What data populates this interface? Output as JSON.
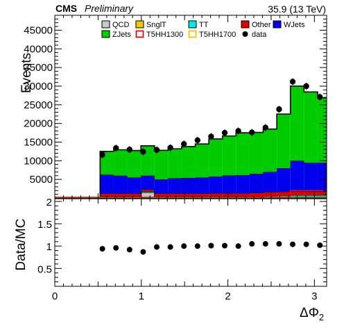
{
  "header": {
    "experiment": "CMS",
    "status": "Preliminary",
    "lumi": "35.9 (13 TeV)"
  },
  "chart_data": [
    {
      "type": "stacked-histogram",
      "xlabel": "ΔΦ",
      "xlabel_sub": "2",
      "ylabel": "Events",
      "xlim": [
        0,
        3.1416
      ],
      "ylim": [
        0,
        49000
      ],
      "yticks": [
        5000,
        10000,
        15000,
        20000,
        25000,
        30000,
        35000,
        40000,
        45000
      ],
      "ytick_labels": [
        "5000",
        "10000",
        "15000",
        "20000",
        "25000",
        "30000",
        "35000",
        "40000",
        "45000"
      ],
      "bin_edges": [
        0.5236,
        0.6807,
        0.8378,
        0.9948,
        1.1519,
        1.309,
        1.4661,
        1.6232,
        1.7802,
        1.9373,
        2.0944,
        2.2515,
        2.4086,
        2.5656,
        2.7227,
        2.8798,
        3.0369,
        3.1416
      ],
      "legend": {
        "placement": "top-right",
        "entries": [
          {
            "label": "QCD",
            "style": "fill",
            "color": "#c8c8c8"
          },
          {
            "label": "SnglT",
            "style": "fill",
            "color": "#f7c600"
          },
          {
            "label": "TT",
            "style": "fill",
            "color": "#00e8e8"
          },
          {
            "label": "Other",
            "style": "fill",
            "color": "#e00000"
          },
          {
            "label": "WJets",
            "style": "fill",
            "color": "#0000ee"
          },
          {
            "label": "ZJets",
            "style": "fill",
            "color": "#00cc00"
          },
          {
            "label": "T5HH1300",
            "style": "line",
            "color": "#ff0000"
          },
          {
            "label": "T5HH1700",
            "style": "line",
            "color": "#ffc000"
          },
          {
            "label": "data",
            "style": "marker",
            "color": "#000000"
          }
        ]
      },
      "series": [
        {
          "name": "QCD",
          "color": "#c8c8c8",
          "values": [
            150,
            150,
            150,
            1500,
            150,
            150,
            150,
            150,
            150,
            150,
            150,
            150,
            150,
            200,
            200,
            200,
            200
          ]
        },
        {
          "name": "SnglT",
          "color": "#f7c600",
          "values": [
            100,
            100,
            100,
            100,
            100,
            100,
            100,
            100,
            100,
            100,
            100,
            100,
            150,
            150,
            150,
            150,
            150
          ]
        },
        {
          "name": "TT",
          "color": "#00e8e8",
          "values": [
            200,
            200,
            200,
            200,
            200,
            200,
            200,
            200,
            200,
            200,
            200,
            250,
            300,
            350,
            400,
            400,
            400
          ]
        },
        {
          "name": "Other",
          "color": "#e00000",
          "values": [
            750,
            750,
            750,
            500,
            750,
            750,
            750,
            750,
            800,
            800,
            800,
            900,
            1000,
            1000,
            1000,
            1000,
            1000
          ]
        },
        {
          "name": "WJets",
          "color": "#0000ee",
          "values": [
            5050,
            4800,
            4300,
            3700,
            3800,
            4100,
            4200,
            4300,
            4500,
            4800,
            4900,
            5100,
            5400,
            6300,
            8250,
            7700,
            7700
          ]
        },
        {
          "name": "ZJets",
          "color": "#00cc00",
          "values": [
            6250,
            6950,
            7250,
            8000,
            7800,
            7900,
            8400,
            9000,
            10100,
            10600,
            11350,
            11100,
            11500,
            14500,
            20000,
            19000,
            17400
          ]
        }
      ],
      "signals": [
        {
          "name": "T5HH1300",
          "color": "#ff0000",
          "values": [
            200,
            200,
            200,
            200,
            200,
            200,
            200,
            200,
            200,
            200,
            200,
            300,
            300,
            300,
            2000,
            2000,
            2000
          ]
        },
        {
          "name": "T5HH1700",
          "color": "#ffc000",
          "values": [
            30,
            30,
            30,
            30,
            30,
            30,
            30,
            30,
            30,
            30,
            30,
            30,
            30,
            30,
            30,
            30,
            30
          ]
        }
      ],
      "data": {
        "name": "data",
        "x": [
          0.5498,
          0.7069,
          0.864,
          1.021,
          1.1781,
          1.3352,
          1.4923,
          1.6493,
          1.8064,
          1.9635,
          2.1206,
          2.2777,
          2.4347,
          2.5918,
          2.7489,
          2.906,
          3.063
        ],
        "y": [
          11600,
          13400,
          13000,
          12400,
          12900,
          13500,
          14500,
          15500,
          16500,
          17500,
          18000,
          17600,
          18900,
          23800,
          31200,
          30000,
          27100
        ]
      }
    },
    {
      "type": "scatter",
      "xlabel": "ΔΦ",
      "xlabel_sub": "2",
      "ylabel": "Data/MC",
      "xlim": [
        0,
        3.1416
      ],
      "ylim": [
        0.1,
        2.06
      ],
      "xticks": [
        0,
        1,
        2,
        3
      ],
      "xtick_labels": [
        "0",
        "1",
        "2",
        "3"
      ],
      "yticks": [
        0.5,
        1,
        1.5,
        2
      ],
      "ytick_labels": [
        "0.5",
        "1",
        "1.5",
        "2"
      ],
      "points": {
        "x": [
          0.5498,
          0.7069,
          0.864,
          1.021,
          1.1781,
          1.3352,
          1.4923,
          1.6493,
          1.8064,
          1.9635,
          2.1206,
          2.2777,
          2.4347,
          2.5918,
          2.7489,
          2.906,
          3.063
        ],
        "y": [
          0.94,
          0.96,
          0.92,
          0.87,
          0.98,
          0.98,
          1.0,
          1.0,
          1.01,
          1.01,
          1.0,
          1.05,
          1.05,
          1.05,
          1.04,
          1.04,
          1.02
        ],
        "err": [
          0.02,
          0.02,
          0.02,
          0.06,
          0.02,
          0.02,
          0.02,
          0.02,
          0.02,
          0.02,
          0.02,
          0.02,
          0.02,
          0.02,
          0.02,
          0.02,
          0.02
        ]
      }
    }
  ]
}
